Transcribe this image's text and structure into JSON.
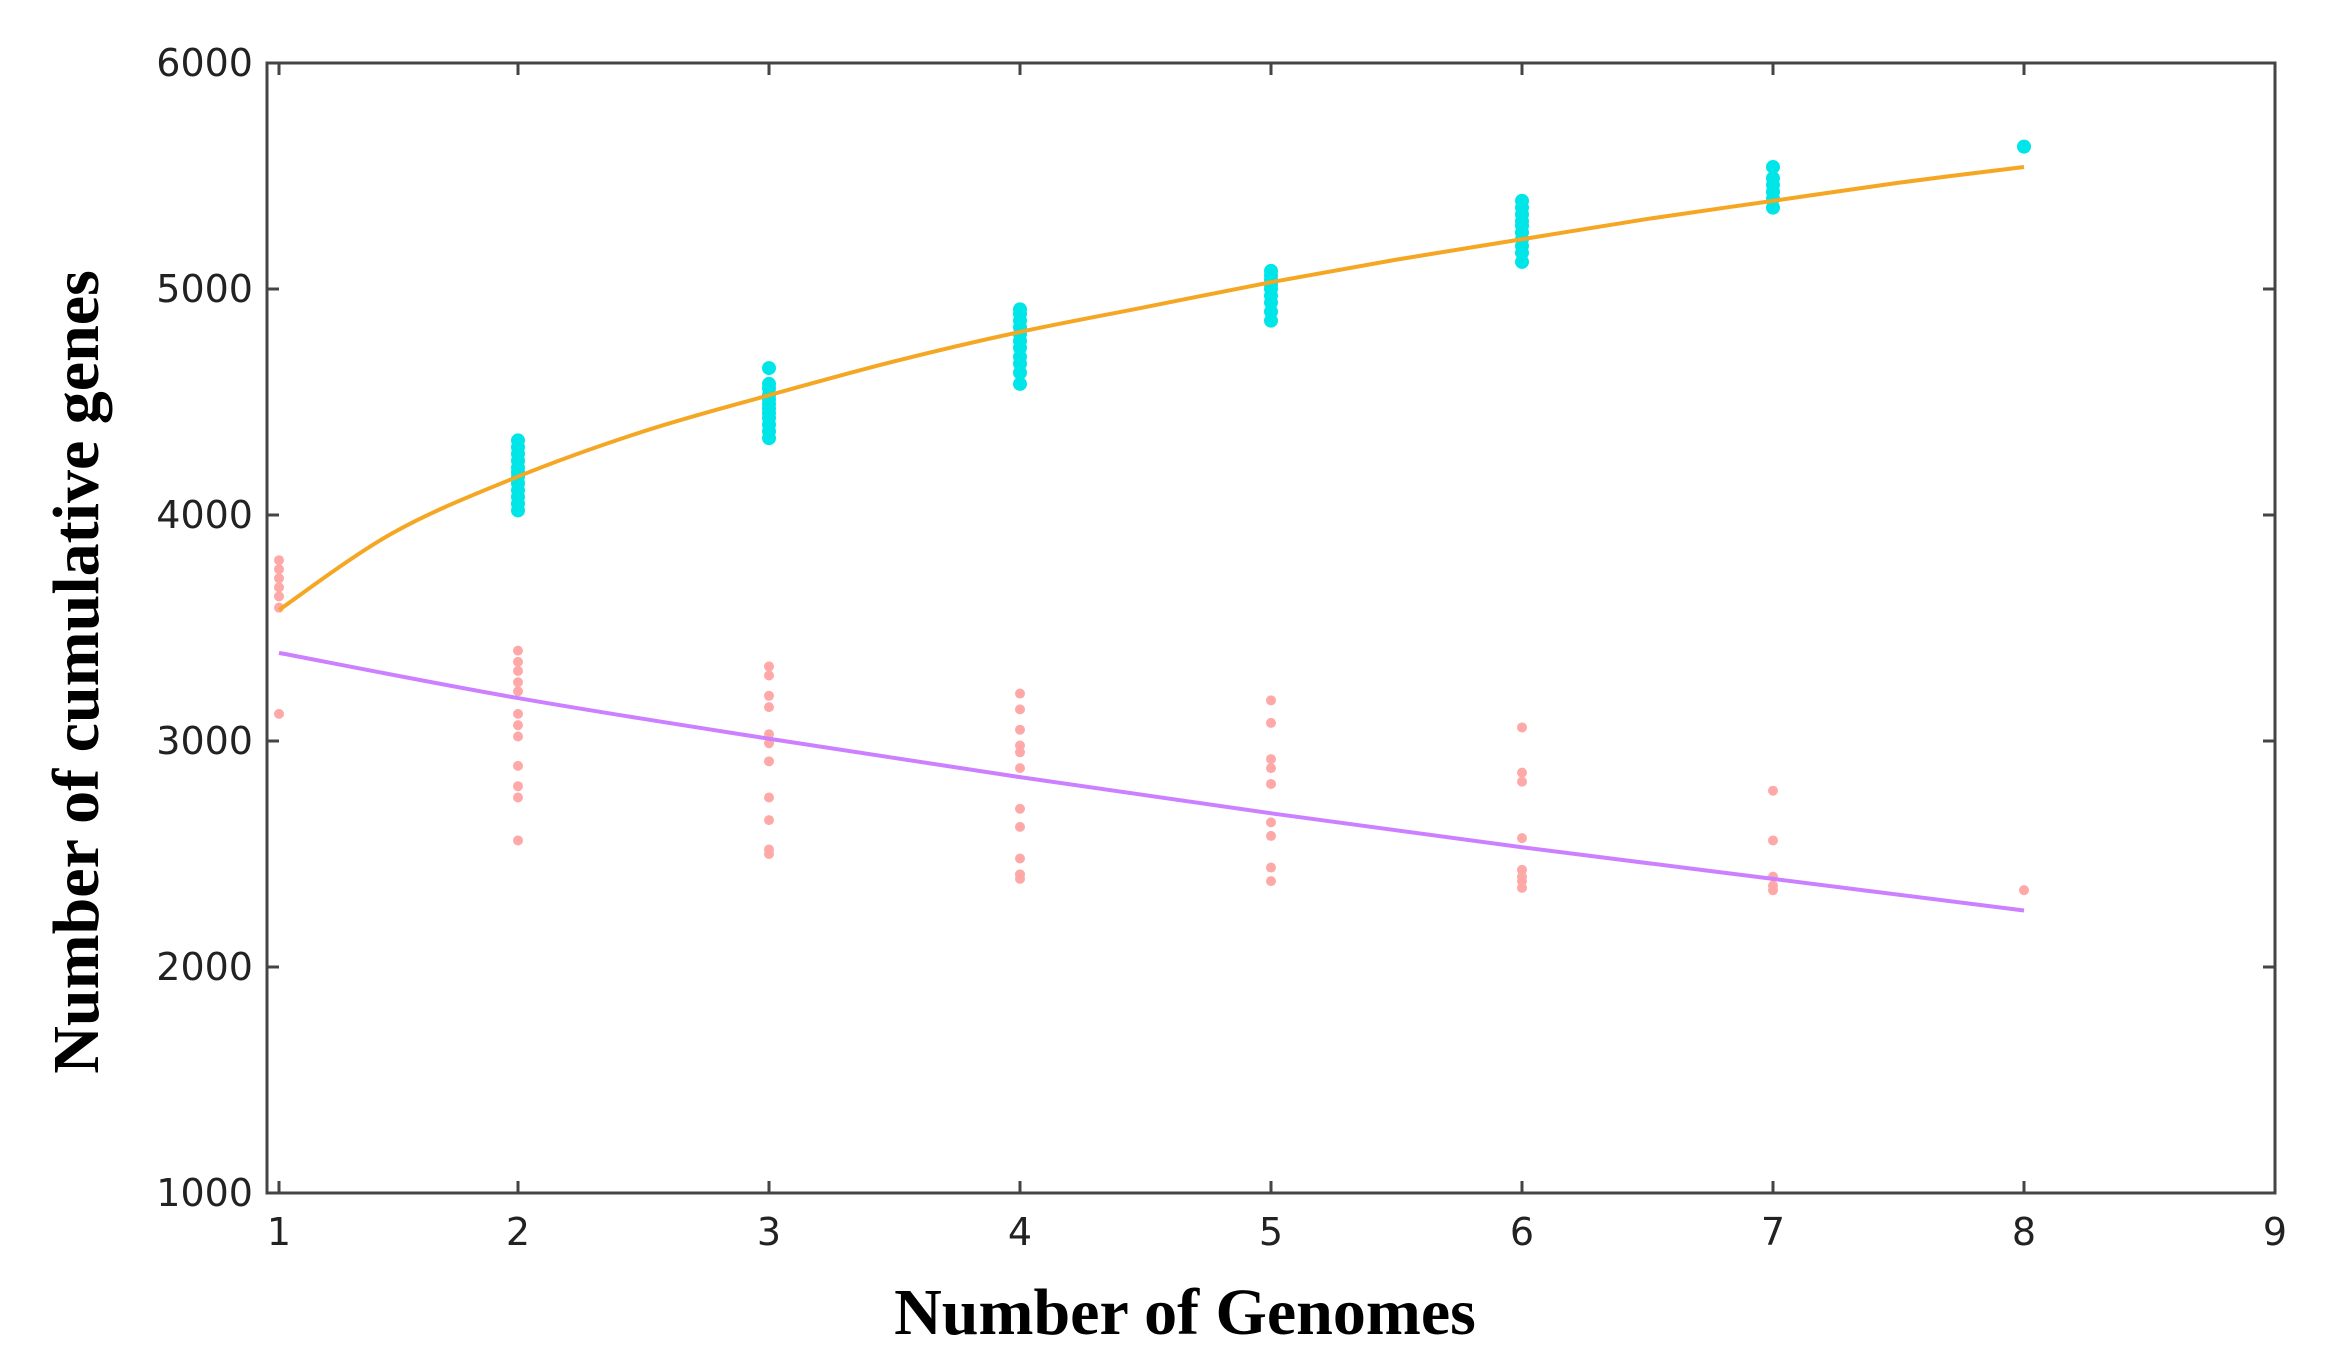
{
  "chart_data": {
    "type": "scatter",
    "title": "",
    "xlabel": "Number of Genomes",
    "ylabel": "Number of cumulative genes",
    "xlim": [
      1,
      9
    ],
    "ylim": [
      1000,
      6000
    ],
    "xticks": [
      "1",
      "2",
      "3",
      "4",
      "5",
      "6",
      "7",
      "8",
      "9"
    ],
    "yticks": [
      "1000",
      "2000",
      "3000",
      "4000",
      "5000",
      "6000"
    ],
    "grid": false,
    "legend": "none",
    "series": [
      {
        "kind": "points",
        "color": "#00e5e8",
        "x": [
          2,
          2,
          2,
          2,
          2,
          2,
          2,
          2,
          2,
          2,
          2,
          2,
          3,
          3,
          3,
          3,
          3,
          3,
          3,
          3,
          3,
          3,
          3,
          3,
          4,
          4,
          4,
          4,
          4,
          4,
          4,
          4,
          4,
          4,
          4,
          5,
          5,
          5,
          5,
          5,
          5,
          5,
          5,
          5,
          6,
          6,
          6,
          6,
          6,
          6,
          6,
          6,
          6,
          6,
          7,
          7,
          7,
          7,
          7,
          7,
          8
        ],
        "y": [
          4020,
          4050,
          4080,
          4110,
          4140,
          4170,
          4190,
          4210,
          4240,
          4270,
          4300,
          4330,
          4340,
          4370,
          4400,
          4430,
          4450,
          4470,
          4490,
          4510,
          4530,
          4560,
          4580,
          4650,
          4580,
          4630,
          4670,
          4700,
          4740,
          4770,
          4800,
          4830,
          4860,
          4890,
          4910,
          4860,
          4900,
          4940,
          4970,
          5000,
          5020,
          5040,
          5060,
          5080,
          5120,
          5160,
          5190,
          5220,
          5250,
          5280,
          5300,
          5330,
          5360,
          5390,
          5360,
          5400,
          5430,
          5460,
          5490,
          5540,
          5630
        ]
      },
      {
        "kind": "points",
        "color": "#ffa8a8",
        "x": [
          1,
          1,
          1,
          1,
          1,
          1,
          1,
          2,
          2,
          2,
          2,
          2,
          2,
          2,
          2,
          2,
          2,
          2,
          2,
          3,
          3,
          3,
          3,
          3,
          3,
          3,
          3,
          3,
          3,
          3,
          4,
          4,
          4,
          4,
          4,
          4,
          4,
          4,
          4,
          4,
          4,
          5,
          5,
          5,
          5,
          5,
          5,
          5,
          5,
          5,
          6,
          6,
          6,
          6,
          6,
          6,
          6,
          6,
          7,
          7,
          7,
          7,
          7,
          8
        ],
        "y": [
          3590,
          3640,
          3680,
          3720,
          3760,
          3800,
          3120,
          3400,
          3350,
          3310,
          3260,
          3220,
          3120,
          3070,
          3020,
          2890,
          2800,
          2750,
          2560,
          3330,
          3290,
          3200,
          3150,
          3030,
          2990,
          2910,
          2750,
          2650,
          2520,
          2500,
          3210,
          3140,
          3050,
          2980,
          2950,
          2880,
          2700,
          2620,
          2480,
          2410,
          2390,
          3180,
          3080,
          2920,
          2880,
          2810,
          2640,
          2580,
          2440,
          2380,
          3060,
          2860,
          2820,
          2570,
          2430,
          2400,
          2380,
          2350,
          2780,
          2560,
          2400,
          2360,
          2340,
          2340
        ]
      },
      {
        "kind": "line",
        "color": "#f5a623",
        "x": [
          1,
          1.5,
          2,
          2.5,
          3,
          3.5,
          4,
          4.5,
          5,
          5.5,
          6,
          6.5,
          7,
          7.5,
          8
        ],
        "y": [
          3580,
          3920,
          4170,
          4370,
          4530,
          4680,
          4810,
          4920,
          5030,
          5130,
          5220,
          5310,
          5390,
          5470,
          5540
        ]
      },
      {
        "kind": "line",
        "color": "#cc80ff",
        "x": [
          1,
          2,
          3,
          4,
          5,
          6,
          7,
          8
        ],
        "y": [
          3390,
          3190,
          3010,
          2840,
          2680,
          2530,
          2390,
          2250
        ]
      }
    ]
  }
}
